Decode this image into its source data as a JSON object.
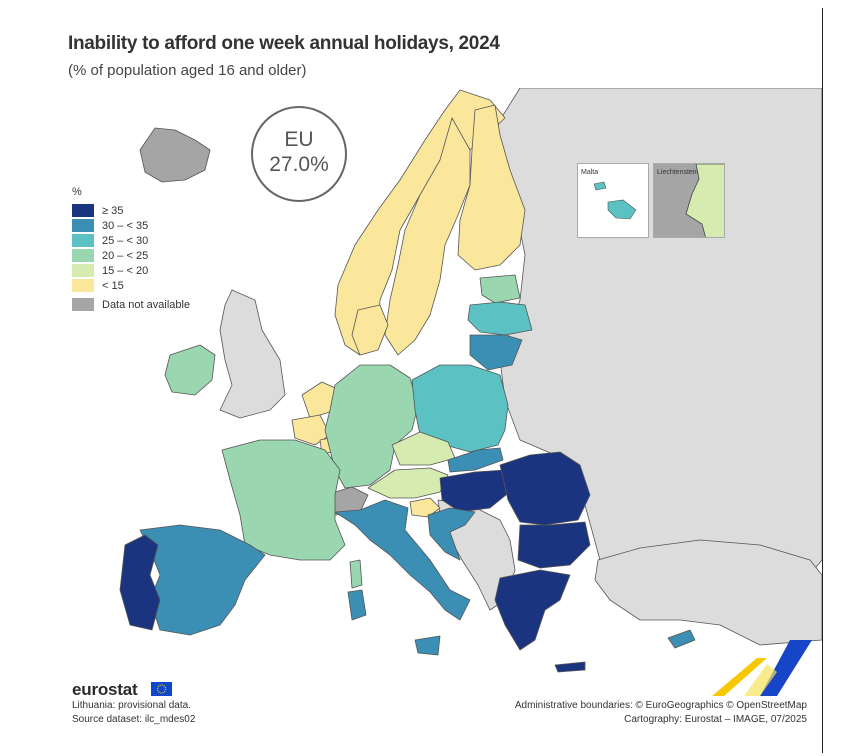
{
  "title": "Inability to afford one week annual holidays, 2024",
  "subtitle": "(% of population aged 16 and older)",
  "eu_summary": {
    "label": "EU",
    "value": "27.0%"
  },
  "legend": {
    "unit": "%",
    "classes": [
      {
        "label": "≥ 35",
        "color": "#1a347f"
      },
      {
        "label": "30 – < 35",
        "color": "#3b8fb5"
      },
      {
        "label": "25 – < 30",
        "color": "#5bc1c3"
      },
      {
        "label": "20 – < 25",
        "color": "#9ad6b0"
      },
      {
        "label": "15 – < 20",
        "color": "#d5ebb0"
      },
      {
        "label": "< 15",
        "color": "#fae79c"
      }
    ],
    "not_available": {
      "label": "Data not available",
      "color": "#a5a5a5"
    }
  },
  "insets": [
    {
      "label": "Malta"
    },
    {
      "label": "Liechtenstein"
    }
  ],
  "colors": {
    "non_eu_land": "#dcdcdc",
    "water": "#ffffff",
    "border": "#444444"
  },
  "footer": {
    "logo": "eurostat",
    "notes": [
      "Lithuania: provisional data.",
      "Source dataset: ilc_mdes02"
    ],
    "credits": [
      "Administrative boundaries: © EuroGeographics © OpenStreetMap",
      "Cartography: Eurostat – IMAGE, 07/2025"
    ]
  }
}
